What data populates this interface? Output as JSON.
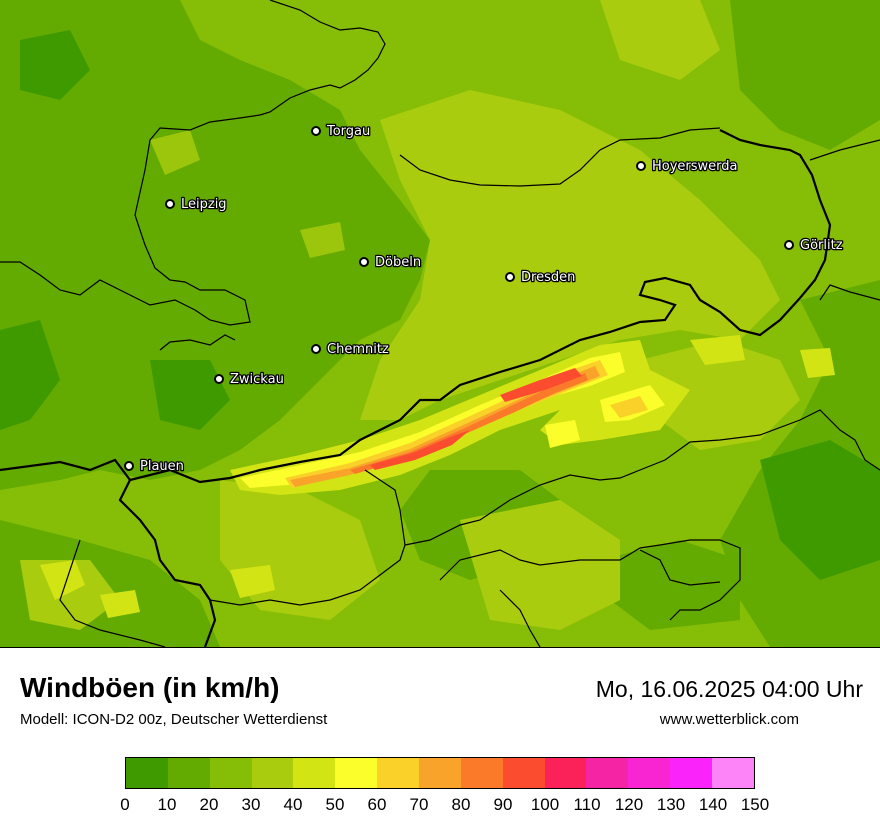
{
  "header": {
    "title": "Windböen (in km/h)",
    "model": "Modell: ICON-D2 00z, Deutscher Wetterdienst",
    "datetime": "Mo, 16.06.2025 04:00 Uhr",
    "website": "www.wetterblick.com"
  },
  "map": {
    "cities": [
      {
        "name": "Torgau"
      },
      {
        "name": "Hoyerswerda"
      },
      {
        "name": "Leipzig"
      },
      {
        "name": "Görlitz"
      },
      {
        "name": "Döbeln"
      },
      {
        "name": "Dresden"
      },
      {
        "name": "Chemnitz"
      },
      {
        "name": "Zwickau"
      },
      {
        "name": "Plauen"
      }
    ]
  },
  "legend": {
    "colors": [
      "#3f9a00",
      "#63ab00",
      "#86bd07",
      "#a9cd0e",
      "#d3e414",
      "#fbfe2a",
      "#f9d128",
      "#f9a32a",
      "#fa7a2a",
      "#fb4c30",
      "#fb2259",
      "#f424a4",
      "#f924d2",
      "#fa24fa",
      "#fc84f8"
    ],
    "ticks": [
      "0",
      "10",
      "20",
      "30",
      "40",
      "50",
      "60",
      "70",
      "80",
      "90",
      "100",
      "110",
      "120",
      "130",
      "140",
      "150"
    ]
  }
}
